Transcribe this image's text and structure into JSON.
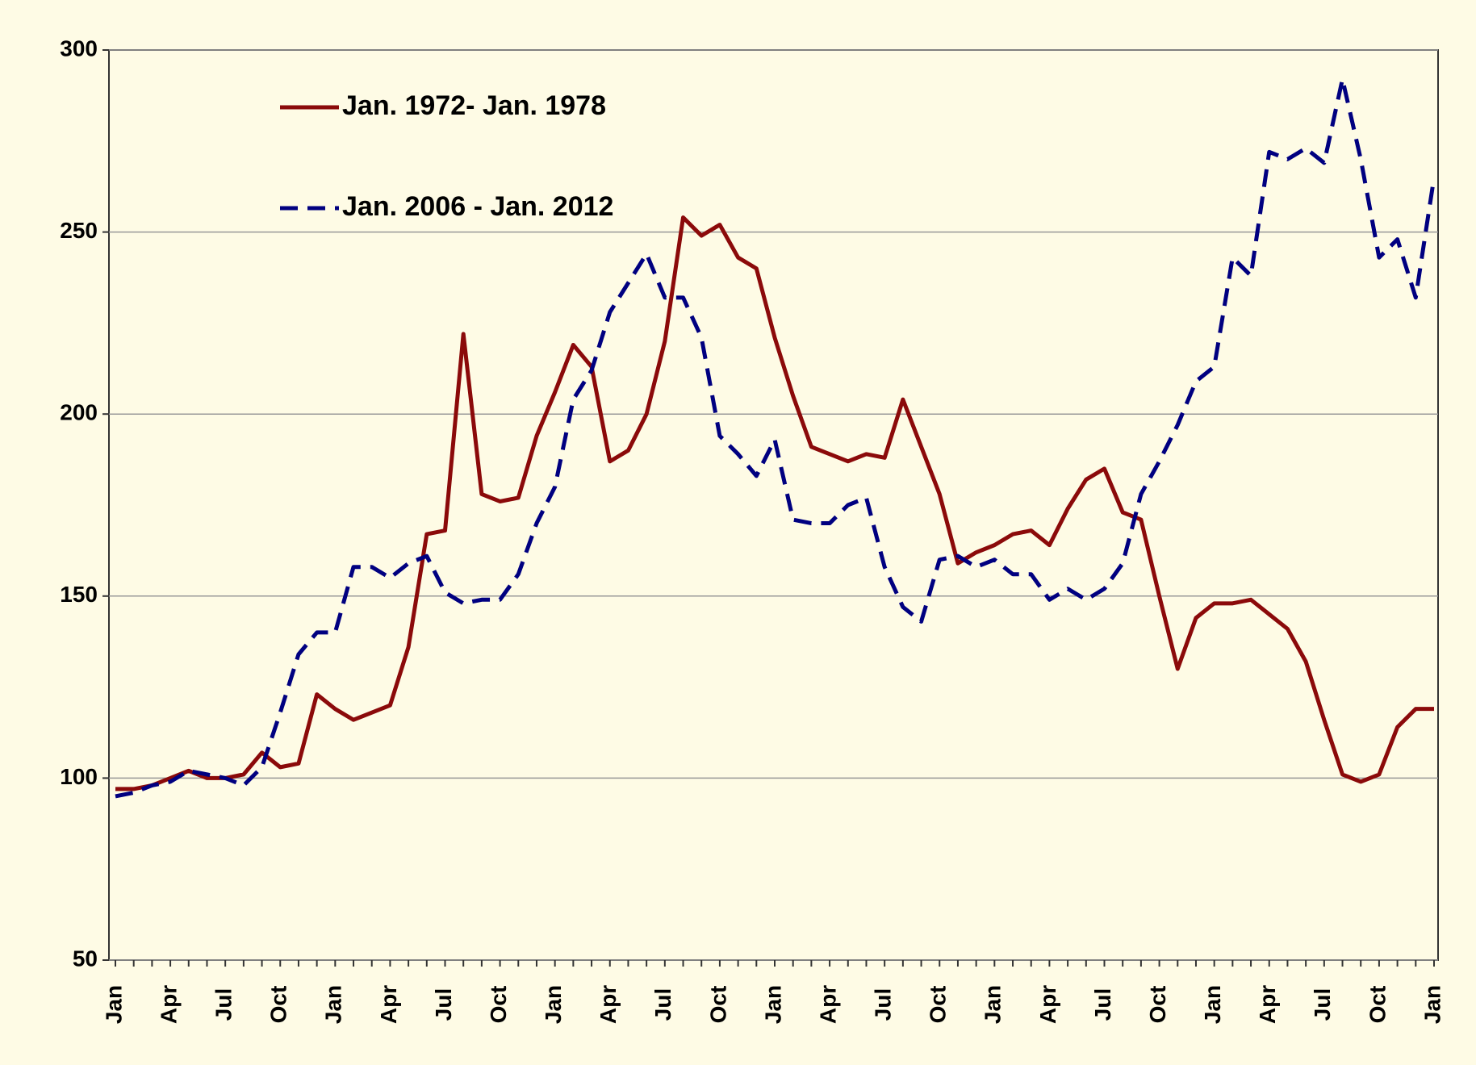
{
  "chart_data": {
    "type": "line",
    "categories": [
      "Jan",
      null,
      null,
      "Apr",
      null,
      null,
      "Jul",
      null,
      null,
      "Oct",
      null,
      null,
      "Jan",
      null,
      null,
      "Apr",
      null,
      null,
      "Jul",
      null,
      null,
      "Oct",
      null,
      null,
      "Jan",
      null,
      null,
      "Apr",
      null,
      null,
      "Jul",
      null,
      null,
      "Oct",
      null,
      null,
      "Jan",
      null,
      null,
      "Apr",
      null,
      null,
      "Jul",
      null,
      null,
      "Oct",
      null,
      null,
      "Jan",
      null,
      null,
      "Apr",
      null,
      null,
      "Jul",
      null,
      null,
      "Oct",
      null,
      null,
      "Jan",
      null,
      null,
      "Apr",
      null,
      null,
      "Jul",
      null,
      null,
      "Oct",
      null,
      null,
      "Jan"
    ],
    "series": [
      {
        "name": "Jan. 1972- Jan. 1978",
        "color": "#8b0a0a",
        "dash": false,
        "values": [
          97,
          97,
          98,
          100,
          102,
          100,
          100,
          101,
          107,
          103,
          104,
          123,
          119,
          116,
          118,
          120,
          136,
          167,
          168,
          222,
          178,
          176,
          177,
          194,
          206,
          219,
          213,
          187,
          190,
          200,
          220,
          254,
          249,
          252,
          243,
          240,
          221,
          205,
          191,
          189,
          187,
          189,
          188,
          204,
          191,
          178,
          159,
          162,
          164,
          167,
          168,
          164,
          174,
          182,
          185,
          173,
          171,
          150,
          130,
          144,
          148,
          148,
          149,
          145,
          141,
          132,
          116,
          101,
          99,
          101,
          114,
          119,
          119
        ]
      },
      {
        "name": "Jan. 2006 - Jan. 2012",
        "color": "#000080",
        "dash": true,
        "values": [
          95,
          96,
          98,
          99,
          102,
          101,
          100,
          98,
          103,
          118,
          134,
          140,
          140,
          158,
          158,
          155,
          159,
          161,
          151,
          148,
          149,
          149,
          156,
          170,
          180,
          204,
          212,
          228,
          236,
          244,
          232,
          232,
          221,
          194,
          189,
          183,
          193,
          171,
          170,
          170,
          175,
          177,
          158,
          147,
          143,
          160,
          161,
          158,
          160,
          156,
          156,
          149,
          152,
          149,
          152,
          159,
          178,
          187,
          197,
          209,
          213,
          243,
          238,
          272,
          270,
          273,
          269,
          292,
          270,
          243,
          248,
          232,
          265
        ]
      }
    ],
    "ylim": [
      50,
      300
    ],
    "yticks": [
      50,
      100,
      150,
      200,
      250,
      300
    ],
    "grid": true
  }
}
